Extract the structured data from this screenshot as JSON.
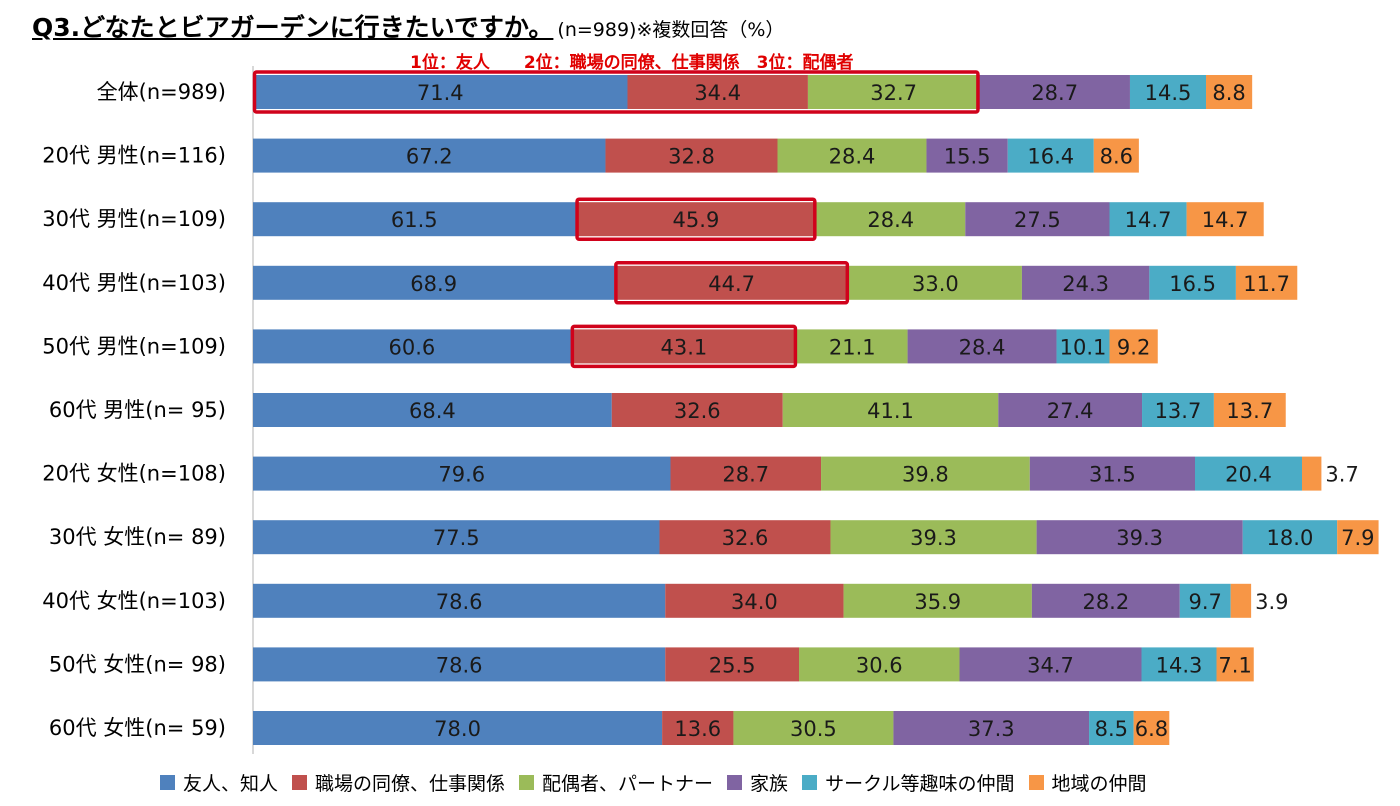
{
  "title": {
    "main": "Q3.どなたとビアガーデンに行きたいですか。",
    "sub": "(n=989)※複数回答（%）"
  },
  "highlight_note": "1位：友人　　2位：職場の同僚、仕事関係　3位：配偶者",
  "chart_data": {
    "type": "bar",
    "orientation": "horizontal",
    "stacked": true,
    "categories": [
      "全体(n=989)",
      "20代 男性(n=116)",
      "30代 男性(n=109)",
      "40代 男性(n=103)",
      "50代 男性(n=109)",
      "60代 男性(n=  95)",
      "20代 女性(n=108)",
      "30代 女性(n=  89)",
      "40代 女性(n=103)",
      "50代 女性(n=  98)",
      "60代 女性(n=  59)"
    ],
    "series": [
      {
        "name": "友人、知人",
        "color": "#4f81bd",
        "values": [
          71.4,
          67.2,
          61.5,
          68.9,
          60.6,
          68.4,
          79.6,
          77.5,
          78.6,
          78.6,
          78.0
        ]
      },
      {
        "name": "職場の同僚、仕事関係",
        "color": "#c0504d",
        "values": [
          34.4,
          32.8,
          45.9,
          44.7,
          43.1,
          32.6,
          28.7,
          32.6,
          34.0,
          25.5,
          13.6
        ]
      },
      {
        "name": "配偶者、パートナー",
        "color": "#9bbb59",
        "values": [
          32.7,
          28.4,
          28.4,
          33.0,
          21.1,
          41.1,
          39.8,
          39.3,
          35.9,
          30.6,
          30.5
        ]
      },
      {
        "name": "家族",
        "color": "#8064a2",
        "values": [
          28.7,
          15.5,
          27.5,
          24.3,
          28.4,
          27.4,
          31.5,
          39.3,
          28.2,
          34.7,
          37.3
        ]
      },
      {
        "name": "サークル等趣味の仲間",
        "color": "#4bacc6",
        "values": [
          14.5,
          16.4,
          14.7,
          16.5,
          10.1,
          13.7,
          20.4,
          18.0,
          9.7,
          14.3,
          8.5
        ]
      },
      {
        "name": "地域の仲間",
        "color": "#f79646",
        "values": [
          8.8,
          8.6,
          14.7,
          11.7,
          9.2,
          13.7,
          3.7,
          7.9,
          3.9,
          7.1,
          6.8
        ]
      }
    ],
    "highlights": [
      {
        "category_index": 0,
        "series_from": 0,
        "series_to": 2
      },
      {
        "category_index": 2,
        "series_from": 1,
        "series_to": 1
      },
      {
        "category_index": 3,
        "series_from": 1,
        "series_to": 1
      },
      {
        "category_index": 4,
        "series_from": 1,
        "series_to": 1
      }
    ],
    "highlight_color": "#d0021b",
    "xlim": [
      0,
      215
    ],
    "legend_position": "bottom",
    "grid": false
  }
}
